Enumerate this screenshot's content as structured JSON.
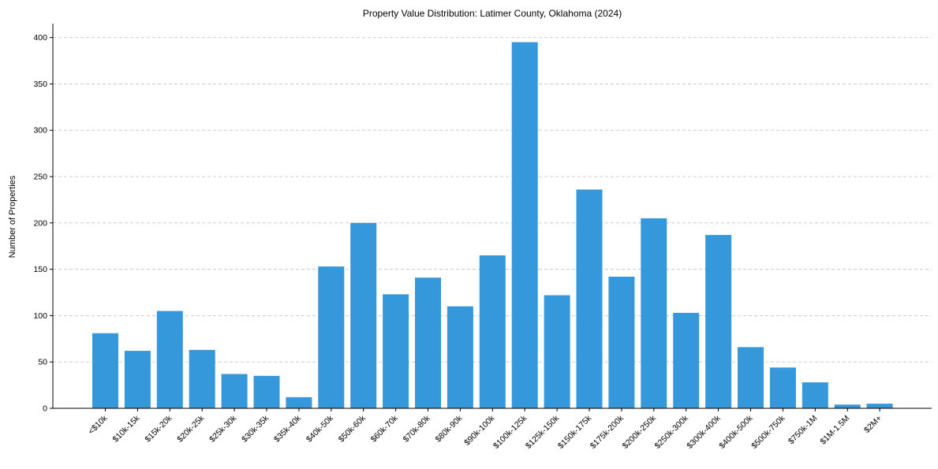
{
  "chart_data": {
    "type": "bar",
    "title": "Property Value Distribution: Latimer County, Oklahoma (2024)",
    "xlabel": "",
    "ylabel": "Number of Properties",
    "ylim": [
      0,
      415
    ],
    "yticks": [
      0,
      50,
      100,
      150,
      200,
      250,
      300,
      350,
      400
    ],
    "grid": "y-dashed",
    "bar_color": "#3498db",
    "categories": [
      "<$10k",
      "$10k-15k",
      "$15k-20k",
      "$20k-25k",
      "$25k-30k",
      "$30k-35k",
      "$35k-40k",
      "$40k-50k",
      "$50k-60k",
      "$60k-70k",
      "$70k-80k",
      "$80k-90k",
      "$90k-100k",
      "$100k-125k",
      "$125k-150k",
      "$150k-175k",
      "$175k-200k",
      "$200k-250k",
      "$250k-300k",
      "$300k-400k",
      "$400k-500k",
      "$500k-750k",
      "$750k-1M",
      "$1M-1.5M",
      "$2M+"
    ],
    "values": [
      81,
      62,
      105,
      63,
      37,
      35,
      12,
      153,
      200,
      123,
      141,
      110,
      165,
      395,
      122,
      236,
      142,
      205,
      103,
      187,
      66,
      44,
      28,
      4,
      5
    ]
  }
}
